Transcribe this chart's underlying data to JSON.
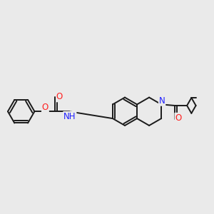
{
  "background_color": "#eaeaea",
  "bond_color": "#1a1a1a",
  "atom_colors": {
    "N": "#2020ff",
    "O": "#ff2020",
    "H": "#1a1a1a",
    "C": "#1a1a1a"
  },
  "lw": 1.4,
  "fs": 8.5
}
